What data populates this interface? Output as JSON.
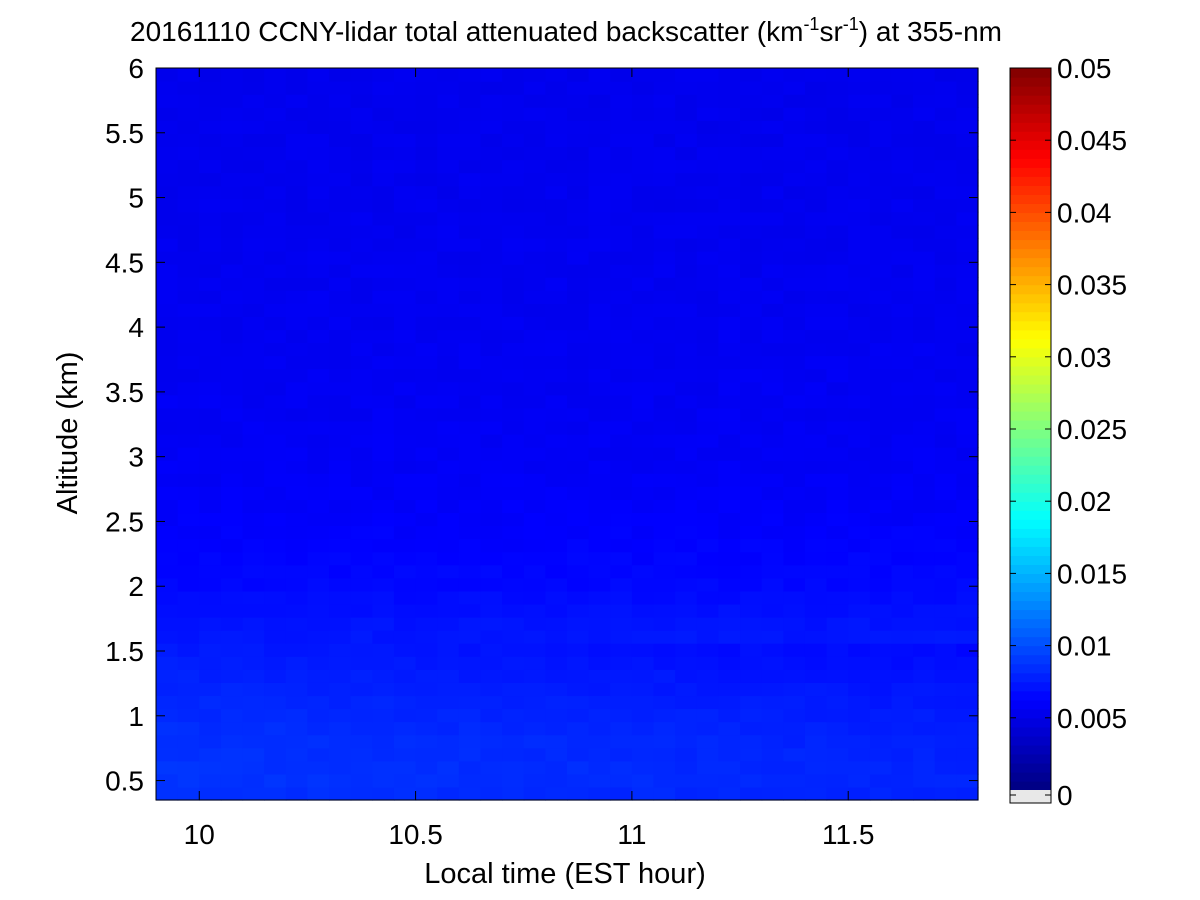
{
  "chart_data": {
    "type": "heatmap",
    "title_parts": {
      "pre": "20161110 CCNY-lidar total attenuated backscatter (km",
      "exp1": "-1",
      "mid": "sr",
      "exp2": "-1",
      "post": ") at 355-nm"
    },
    "xlabel": "Local time (EST hour)",
    "ylabel": "Altitude (km)",
    "xlim": [
      9.9,
      11.8
    ],
    "ylim": [
      0.35,
      6
    ],
    "x_ticks": [
      10,
      10.5,
      11,
      11.5
    ],
    "x_tick_labels": [
      "10",
      "10.5",
      "11",
      "11.5"
    ],
    "y_ticks": [
      0.5,
      1,
      1.5,
      2,
      2.5,
      3,
      3.5,
      4,
      4.5,
      5,
      5.5,
      6
    ],
    "y_tick_labels": [
      "0.5",
      "1",
      "1.5",
      "2",
      "2.5",
      "3",
      "3.5",
      "4",
      "4.5",
      "5",
      "5.5",
      "6"
    ],
    "colorbar": {
      "colormap": "jet",
      "range": [
        0,
        0.05
      ],
      "ticks": [
        0,
        0.005,
        0.01,
        0.015,
        0.02,
        0.025,
        0.03,
        0.035,
        0.04,
        0.045,
        0.05
      ],
      "tick_labels": [
        "0",
        "0.005",
        "0.01",
        "0.015",
        "0.02",
        "0.025",
        "0.03",
        "0.035",
        "0.04",
        "0.045",
        "0.05"
      ],
      "below_range_color": "#e8e8e8"
    },
    "profile": {
      "altitude_km": [
        0.35,
        0.5,
        0.7,
        0.9,
        1.1,
        1.3,
        1.5,
        1.75,
        2.0,
        2.5,
        3.0,
        4.0,
        5.0,
        6.0
      ],
      "backscatter": [
        0.0086,
        0.0088,
        0.0087,
        0.0085,
        0.0082,
        0.0079,
        0.0075,
        0.0071,
        0.0066,
        0.0061,
        0.0058,
        0.0056,
        0.0055,
        0.0054
      ]
    },
    "grid": false
  }
}
